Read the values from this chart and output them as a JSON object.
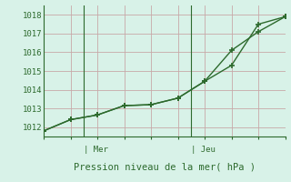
{
  "line1_x": [
    0,
    1,
    2,
    3,
    4,
    5,
    6,
    7,
    8,
    9
  ],
  "line1_y": [
    1011.8,
    1012.4,
    1012.65,
    1013.15,
    1013.2,
    1013.55,
    1014.45,
    1015.3,
    1017.5,
    1017.9
  ],
  "line2_x": [
    0,
    1,
    2,
    3,
    4,
    5,
    6,
    7,
    8,
    9
  ],
  "line2_y": [
    1011.8,
    1012.4,
    1012.65,
    1013.15,
    1013.2,
    1013.55,
    1014.45,
    1016.1,
    1017.1,
    1017.9
  ],
  "line_color": "#2d6a2d",
  "bg_color": "#d8f2e8",
  "grid_color": "#c8a8a8",
  "ylim": [
    1011.5,
    1018.5
  ],
  "yticks": [
    1012,
    1013,
    1014,
    1015,
    1016,
    1017,
    1018
  ],
  "xlim": [
    0,
    9
  ],
  "mer_x": 1.5,
  "jeu_x": 5.5,
  "xlabel": "Pression niveau de la mer( hPa )"
}
